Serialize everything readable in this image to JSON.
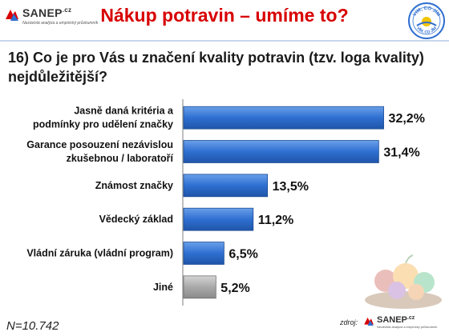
{
  "header": {
    "brand_name": "SANEP",
    "brand_tld": ".cz",
    "brand_tagline": "Nezávislá analýza a empirický průzkumník",
    "title": "Nákup potravin – umíme to?",
    "badge_text_top": "VÍM, CO JÍM",
    "badge_text_bottom": "VÍM, CO JÍM"
  },
  "question": "16) Co je pro Vás u značení kvality potravin (tzv. loga kvality) nejdůležitější?",
  "chart_data": {
    "type": "bar",
    "orientation": "horizontal",
    "categories": [
      [
        "Jasně daná kritéria a",
        "podmínky pro udělení značky"
      ],
      [
        "Garance posouzení nezávislou",
        "zkušebnou / laboratoří"
      ],
      [
        "Známost značky"
      ],
      [
        "Vědecký základ"
      ],
      [
        "Vládní záruka (vládní program)"
      ],
      [
        "Jiné"
      ]
    ],
    "values": [
      32.2,
      31.4,
      13.5,
      11.2,
      6.5,
      5.2
    ],
    "value_labels": [
      "32,2%",
      "31,4%",
      "13,5%",
      "11,2%",
      "6,5%",
      "5,2%"
    ],
    "colors": [
      "#2f6fd1",
      "#2f6fd1",
      "#2f6fd1",
      "#2f6fd1",
      "#2f6fd1",
      "#a9a9a9"
    ],
    "xlim": [
      0,
      40
    ],
    "grid": false,
    "title": "",
    "xlabel": "",
    "ylabel": ""
  },
  "footer": {
    "sample": "N=10.742",
    "source_label": "zdroj:",
    "source_name": "SANEP",
    "source_tld": ".cz",
    "source_tagline": "Nezávislá analýza a empirický průzkumník"
  }
}
